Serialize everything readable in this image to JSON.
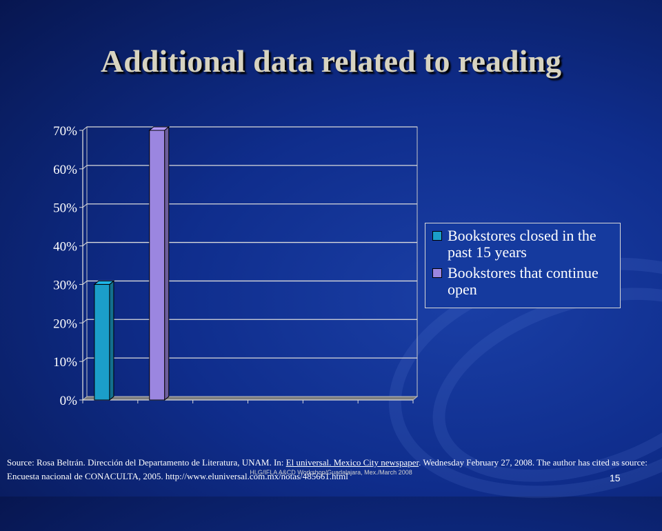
{
  "slide": {
    "title": "Additional data  related to reading",
    "source_text_1": "Source: Rosa Beltrán. Dirección del Departamento de Literatura, UNAM. In: ",
    "source_link": "El universal. Mexico City newspaper",
    "source_text_2": ". Wednesday February 27, 2008. The author has cited as source:  Encuesta nacional de CONACULTA, 2005.  http://www.eluniversal.com.mx/notas/485661.html",
    "footer": "HLG/IFLA  A&CD Workshop/Guadalajara, Mex./March 2008",
    "page_number": "15"
  },
  "chart_data": {
    "type": "bar",
    "title": "",
    "xlabel": "",
    "ylabel": "",
    "ylim": [
      0,
      70
    ],
    "y_ticks": [
      "0%",
      "10%",
      "20%",
      "30%",
      "40%",
      "50%",
      "60%",
      "70%"
    ],
    "grid": true,
    "legend_position": "right",
    "categories": [
      "",
      "",
      "",
      "",
      "",
      ""
    ],
    "series": [
      {
        "name": "Bookstores closed in the past 15 years",
        "color": "#1b9ec9",
        "values": [
          30,
          null,
          null,
          null,
          null,
          null
        ]
      },
      {
        "name": "Bookstores that continue open",
        "color": "#9b86e0",
        "values": [
          null,
          70,
          null,
          null,
          null,
          null
        ]
      }
    ]
  }
}
